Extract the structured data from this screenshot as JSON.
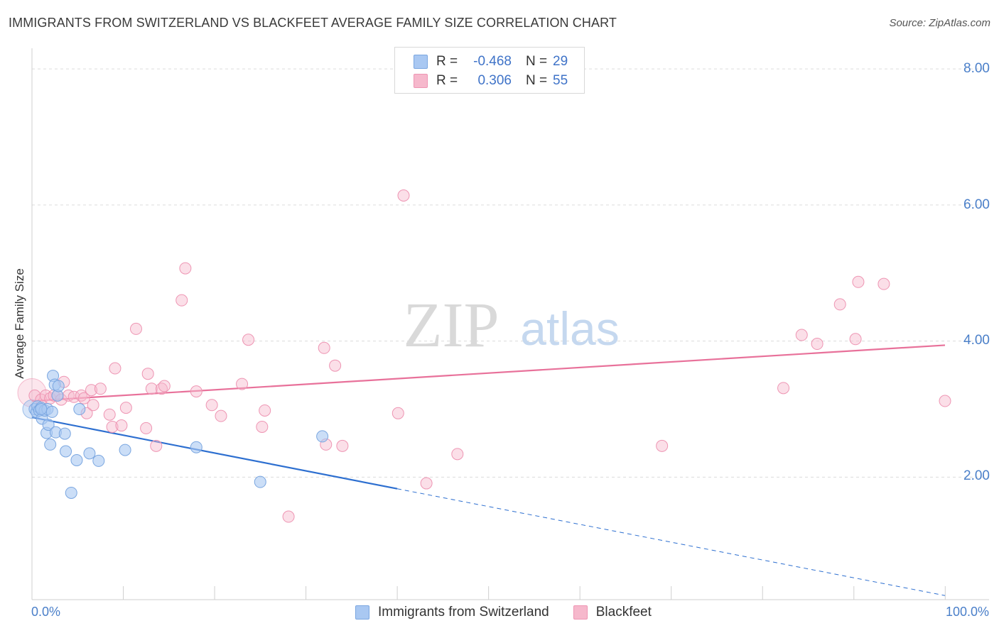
{
  "title": "IMMIGRANTS FROM SWITZERLAND VS BLACKFEET AVERAGE FAMILY SIZE CORRELATION CHART",
  "source": "Source: ZipAtlas.com",
  "watermark": {
    "zip": "ZIP",
    "atlas": "atlas"
  },
  "colors": {
    "blue_fill": "#a9c8f2",
    "blue_stroke": "#7aa6e0",
    "blue_line": "#2d6fd0",
    "pink_fill": "#f6b8cc",
    "pink_stroke": "#ee95b3",
    "pink_line": "#e8719a",
    "grid": "#dcdcdc",
    "axis_text": "#4a7fc9"
  },
  "legend": {
    "rows": [
      {
        "r_label": "R =",
        "r_value": "-0.468",
        "n_label": "N =",
        "n_value": "29",
        "color": "#a9c8f2",
        "border": "#7aa6e0"
      },
      {
        "r_label": "R =",
        "r_value": "0.306",
        "n_label": "N =",
        "n_value": "55",
        "color": "#f6b8cc",
        "border": "#ee95b3"
      }
    ]
  },
  "bottom_legend": [
    {
      "label": "Immigrants from Switzerland",
      "color": "#a9c8f2",
      "border": "#7aa6e0"
    },
    {
      "label": "Blackfeet",
      "color": "#f6b8cc",
      "border": "#ee95b3"
    }
  ],
  "chart_data": {
    "type": "scatter",
    "title": "IMMIGRANTS FROM SWITZERLAND VS BLACKFEET AVERAGE FAMILY SIZE CORRELATION CHART",
    "xlabel": "",
    "ylabel": "Average Family Size",
    "x_tick_labels": [
      "0.0%",
      "100.0%"
    ],
    "y_tick_labels": [
      "2.00",
      "4.00",
      "6.00",
      "8.00"
    ],
    "y_ticks": [
      2,
      4,
      6,
      8
    ],
    "xlim": [
      0,
      100
    ],
    "ylim": [
      0.2,
      8.2
    ],
    "grid": true,
    "series": [
      {
        "name": "Immigrants from Switzerland",
        "color": "#a9c8f2",
        "stroke": "#7aa6e0",
        "points": [
          [
            0.3,
            3.0
          ],
          [
            0.5,
            2.96
          ],
          [
            0.6,
            3.04
          ],
          [
            0.8,
            2.98
          ],
          [
            1.0,
            3.02
          ],
          [
            1.1,
            2.86
          ],
          [
            1.4,
            2.98
          ],
          [
            1.6,
            2.65
          ],
          [
            1.7,
            3.0
          ],
          [
            1.8,
            2.77
          ],
          [
            2.0,
            2.48
          ],
          [
            2.2,
            2.96
          ],
          [
            2.3,
            3.49
          ],
          [
            2.5,
            3.36
          ],
          [
            2.6,
            2.66
          ],
          [
            2.8,
            3.2
          ],
          [
            2.9,
            3.34
          ],
          [
            3.6,
            2.64
          ],
          [
            3.7,
            2.38
          ],
          [
            4.9,
            2.25
          ],
          [
            5.2,
            3.0
          ],
          [
            6.3,
            2.35
          ],
          [
            7.3,
            2.24
          ],
          [
            10.2,
            2.4
          ],
          [
            18.0,
            2.44
          ],
          [
            25.0,
            1.93
          ],
          [
            31.8,
            2.6
          ],
          [
            4.3,
            1.77
          ],
          [
            1.0,
            3.0
          ]
        ],
        "trend": {
          "x0": 0,
          "y0": 2.88,
          "x1": 40,
          "y1": 1.83,
          "dash_to_x": 100,
          "dash_to_y": 0.26
        }
      },
      {
        "name": "Blackfeet",
        "color": "#f6b8cc",
        "stroke": "#ee95b3",
        "points": [
          [
            0.3,
            3.2
          ],
          [
            1.0,
            3.14
          ],
          [
            1.5,
            3.2
          ],
          [
            2.0,
            3.16
          ],
          [
            2.4,
            3.2
          ],
          [
            2.8,
            3.2
          ],
          [
            3.2,
            3.14
          ],
          [
            3.5,
            3.4
          ],
          [
            4.0,
            3.2
          ],
          [
            4.6,
            3.18
          ],
          [
            5.4,
            3.2
          ],
          [
            5.7,
            3.16
          ],
          [
            6.0,
            2.94
          ],
          [
            6.5,
            3.28
          ],
          [
            6.7,
            3.06
          ],
          [
            7.5,
            3.3
          ],
          [
            8.5,
            2.92
          ],
          [
            8.8,
            2.74
          ],
          [
            9.1,
            3.6
          ],
          [
            9.8,
            2.76
          ],
          [
            10.3,
            3.02
          ],
          [
            11.4,
            4.18
          ],
          [
            12.5,
            2.72
          ],
          [
            12.7,
            3.52
          ],
          [
            13.1,
            3.3
          ],
          [
            13.6,
            2.46
          ],
          [
            14.2,
            3.3
          ],
          [
            14.5,
            3.34
          ],
          [
            16.4,
            4.6
          ],
          [
            16.8,
            5.07
          ],
          [
            18.0,
            3.26
          ],
          [
            19.7,
            3.06
          ],
          [
            20.7,
            2.9
          ],
          [
            23.0,
            3.37
          ],
          [
            23.7,
            4.02
          ],
          [
            25.2,
            2.74
          ],
          [
            25.5,
            2.98
          ],
          [
            28.1,
            1.42
          ],
          [
            32.0,
            3.9
          ],
          [
            32.2,
            2.48
          ],
          [
            33.2,
            3.64
          ],
          [
            34.0,
            2.46
          ],
          [
            40.1,
            2.94
          ],
          [
            40.7,
            6.14
          ],
          [
            43.2,
            1.91
          ],
          [
            46.6,
            2.34
          ],
          [
            69.0,
            2.46
          ],
          [
            82.3,
            3.31
          ],
          [
            84.3,
            4.09
          ],
          [
            86.0,
            3.96
          ],
          [
            88.5,
            4.54
          ],
          [
            90.2,
            4.03
          ],
          [
            90.5,
            4.87
          ],
          [
            93.3,
            4.84
          ],
          [
            100.0,
            3.12
          ]
        ],
        "trend": {
          "x0": 0,
          "y0": 3.12,
          "x1": 100,
          "y1": 3.94
        }
      }
    ]
  }
}
